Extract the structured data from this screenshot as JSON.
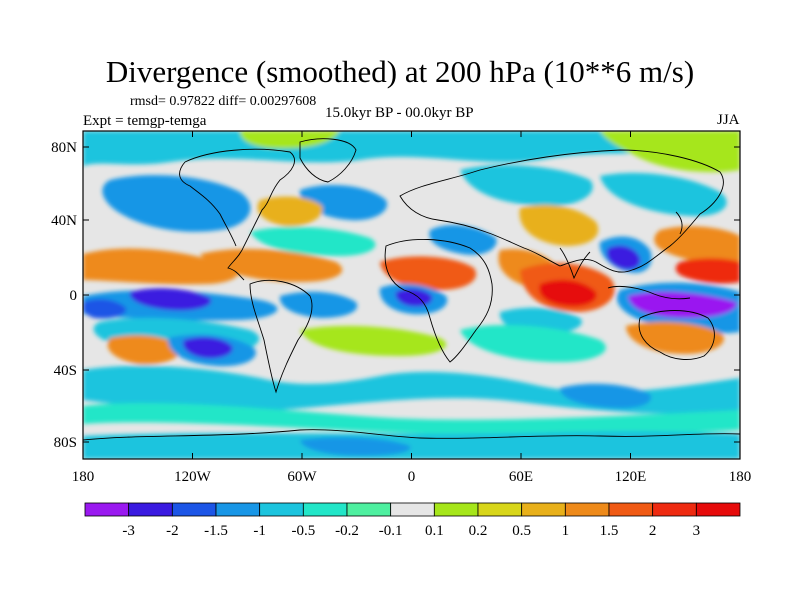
{
  "title": "Divergence (smoothed) at 200 hPa (10**6 m/s)",
  "stats": "rmsd= 0.97822 diff= 0.00297608",
  "experiment": "Expt = temgp-temga",
  "period": "15.0kyr BP - 00.0kyr BP",
  "season": "JJA",
  "lat_ticks": [
    "80N",
    "40N",
    "0",
    "40S",
    "80S"
  ],
  "lon_ticks": [
    "180",
    "120W",
    "60W",
    "0",
    "60E",
    "120E",
    "180"
  ],
  "colorbar": {
    "labels": [
      "-3",
      "-2",
      "-1.5",
      "-1",
      "-0.5",
      "-0.2",
      "-0.1",
      "0.1",
      "0.2",
      "0.5",
      "1",
      "1.5",
      "2",
      "3"
    ],
    "colors": [
      "#9a19f0",
      "#3a1ae0",
      "#1c55e6",
      "#1896e6",
      "#1cc4de",
      "#22e6c8",
      "#4ef0a0",
      "#e6e6e6",
      "#a6e61a",
      "#d8d61a",
      "#e8b01a",
      "#ee8a1a",
      "#f05a14",
      "#ee2a10",
      "#e60a0a"
    ]
  }
}
